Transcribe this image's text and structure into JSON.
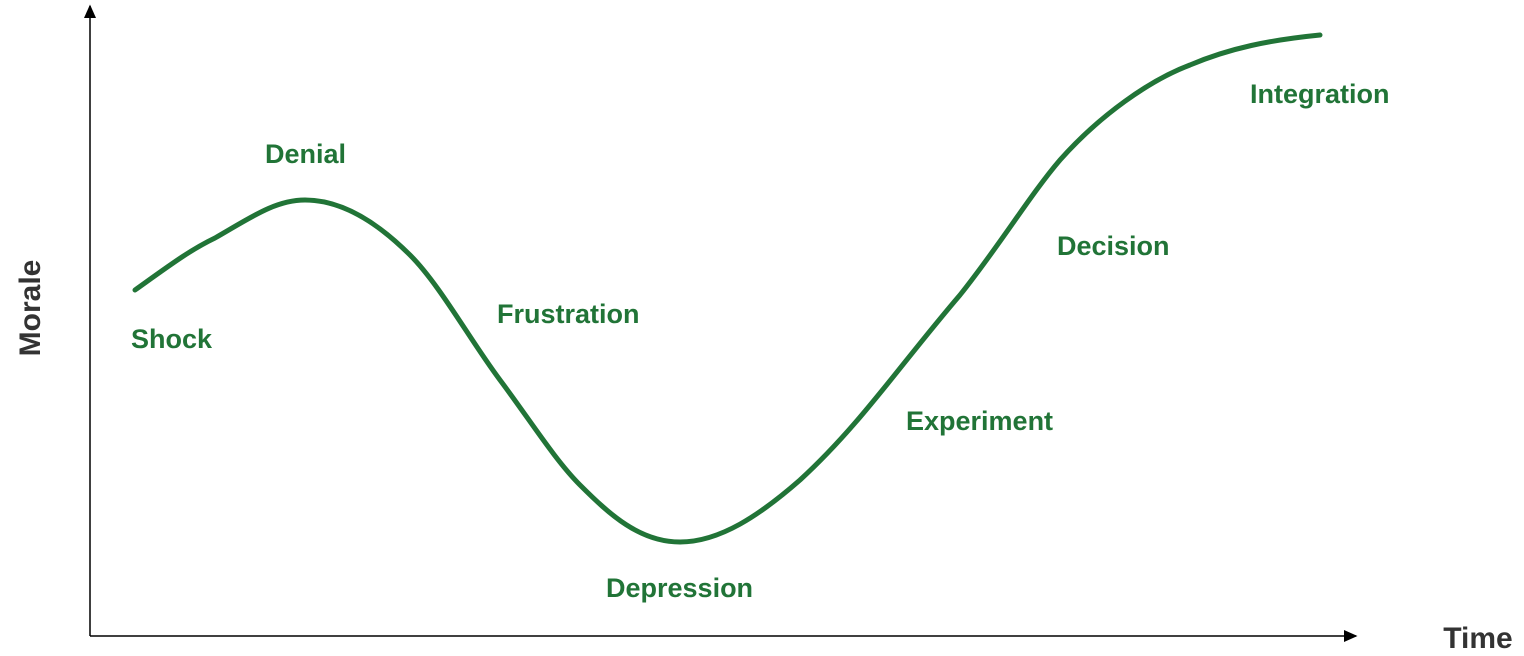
{
  "axes": {
    "y_label": "Morale",
    "x_label": "Time"
  },
  "stages": [
    "Shock",
    "Denial",
    "Frustration",
    "Depression",
    "Experiment",
    "Decision",
    "Integration"
  ]
}
